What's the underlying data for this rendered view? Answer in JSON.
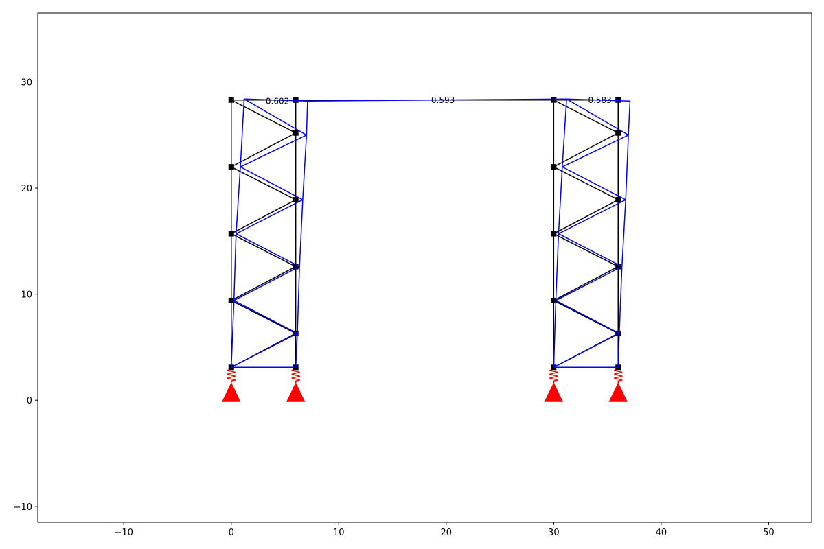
{
  "chart_data": {
    "type": "structural-frame-plot",
    "title": "",
    "xlabel": "",
    "ylabel": "",
    "xlim": [
      -18,
      54
    ],
    "ylim": [
      -11.5,
      36.5
    ],
    "grid": false,
    "legend": "none",
    "xticks": [
      -10,
      0,
      10,
      20,
      30,
      40,
      50
    ],
    "yticks": [
      -10,
      0,
      10,
      20,
      30
    ],
    "xtick_labels": [
      "−10",
      "0",
      "10",
      "20",
      "30",
      "40",
      "50"
    ],
    "ytick_labels": [
      "−10",
      "0",
      "10",
      "20",
      "30"
    ],
    "colors": {
      "undeformed": "#000000",
      "deformed": "#0000ff",
      "supports": "#ff0000",
      "nodes": "#000000"
    },
    "nodes": [
      {
        "id": 1,
        "x": 0,
        "y": 3.1
      },
      {
        "id": 2,
        "x": 6,
        "y": 3.1
      },
      {
        "id": 3,
        "x": 0,
        "y": 9.4
      },
      {
        "id": 4,
        "x": 6,
        "y": 6.3
      },
      {
        "id": 5,
        "x": 0,
        "y": 15.7
      },
      {
        "id": 6,
        "x": 6,
        "y": 12.6
      },
      {
        "id": 7,
        "x": 0,
        "y": 22.0
      },
      {
        "id": 8,
        "x": 6,
        "y": 18.9
      },
      {
        "id": 9,
        "x": 0,
        "y": 28.3
      },
      {
        "id": 10,
        "x": 6,
        "y": 25.2
      },
      {
        "id": 11,
        "x": 6,
        "y": 28.3
      },
      {
        "id": 12,
        "x": 30,
        "y": 3.1
      },
      {
        "id": 13,
        "x": 36,
        "y": 3.1
      },
      {
        "id": 14,
        "x": 30,
        "y": 9.4
      },
      {
        "id": 15,
        "x": 36,
        "y": 6.3
      },
      {
        "id": 16,
        "x": 30,
        "y": 15.7
      },
      {
        "id": 17,
        "x": 36,
        "y": 12.6
      },
      {
        "id": 18,
        "x": 30,
        "y": 22.0
      },
      {
        "id": 19,
        "x": 36,
        "y": 18.9
      },
      {
        "id": 20,
        "x": 30,
        "y": 28.3
      },
      {
        "id": 21,
        "x": 36,
        "y": 25.2
      },
      {
        "id": 22,
        "x": 36,
        "y": 28.3
      }
    ],
    "deformed_nodes": [
      {
        "id": 1,
        "x": 0,
        "y": 3.1
      },
      {
        "id": 2,
        "x": 6,
        "y": 3.1
      },
      {
        "id": 3,
        "x": 0.25,
        "y": 9.4
      },
      {
        "id": 4,
        "x": 6.15,
        "y": 6.3
      },
      {
        "id": 5,
        "x": 0.45,
        "y": 15.7
      },
      {
        "id": 6,
        "x": 6.35,
        "y": 12.6
      },
      {
        "id": 7,
        "x": 0.85,
        "y": 22.0
      },
      {
        "id": 8,
        "x": 6.65,
        "y": 18.9
      },
      {
        "id": 9,
        "x": 1.2,
        "y": 28.4
      },
      {
        "id": 10,
        "x": 7.0,
        "y": 25.0
      },
      {
        "id": 11,
        "x": 7.1,
        "y": 28.2
      },
      {
        "id": 12,
        "x": 30,
        "y": 3.1
      },
      {
        "id": 13,
        "x": 36,
        "y": 3.1
      },
      {
        "id": 14,
        "x": 30.2,
        "y": 9.4
      },
      {
        "id": 15,
        "x": 36.1,
        "y": 6.3
      },
      {
        "id": 16,
        "x": 30.45,
        "y": 15.7
      },
      {
        "id": 17,
        "x": 36.35,
        "y": 12.6
      },
      {
        "id": 18,
        "x": 30.8,
        "y": 22.0
      },
      {
        "id": 19,
        "x": 36.7,
        "y": 18.9
      },
      {
        "id": 20,
        "x": 31.2,
        "y": 28.4
      },
      {
        "id": 21,
        "x": 36.95,
        "y": 25.0
      },
      {
        "id": 22,
        "x": 37.1,
        "y": 28.2
      }
    ],
    "elements": [
      [
        1,
        2
      ],
      [
        1,
        3
      ],
      [
        3,
        5
      ],
      [
        5,
        7
      ],
      [
        7,
        9
      ],
      [
        2,
        4
      ],
      [
        4,
        6
      ],
      [
        6,
        8
      ],
      [
        8,
        10
      ],
      [
        10,
        11
      ],
      [
        1,
        4
      ],
      [
        4,
        3
      ],
      [
        3,
        6
      ],
      [
        6,
        5
      ],
      [
        5,
        8
      ],
      [
        8,
        7
      ],
      [
        7,
        10
      ],
      [
        10,
        9
      ],
      [
        9,
        11
      ],
      [
        11,
        20
      ],
      [
        12,
        13
      ],
      [
        12,
        14
      ],
      [
        14,
        16
      ],
      [
        16,
        18
      ],
      [
        18,
        20
      ],
      [
        13,
        15
      ],
      [
        15,
        17
      ],
      [
        17,
        19
      ],
      [
        19,
        21
      ],
      [
        21,
        22
      ],
      [
        12,
        15
      ],
      [
        15,
        14
      ],
      [
        14,
        17
      ],
      [
        17,
        16
      ],
      [
        16,
        19
      ],
      [
        19,
        18
      ],
      [
        18,
        21
      ],
      [
        21,
        20
      ],
      [
        20,
        22
      ]
    ],
    "supports": [
      {
        "x": 0,
        "y": 0
      },
      {
        "x": 6,
        "y": 0
      },
      {
        "x": 30,
        "y": 0
      },
      {
        "x": 36,
        "y": 0
      }
    ],
    "displacement_labels": [
      {
        "text": "0.602",
        "x": 4.3,
        "y": 28.2
      },
      {
        "text": "0.593",
        "x": 19.7,
        "y": 28.3
      },
      {
        "text": "0.583",
        "x": 34.3,
        "y": 28.3
      }
    ]
  }
}
